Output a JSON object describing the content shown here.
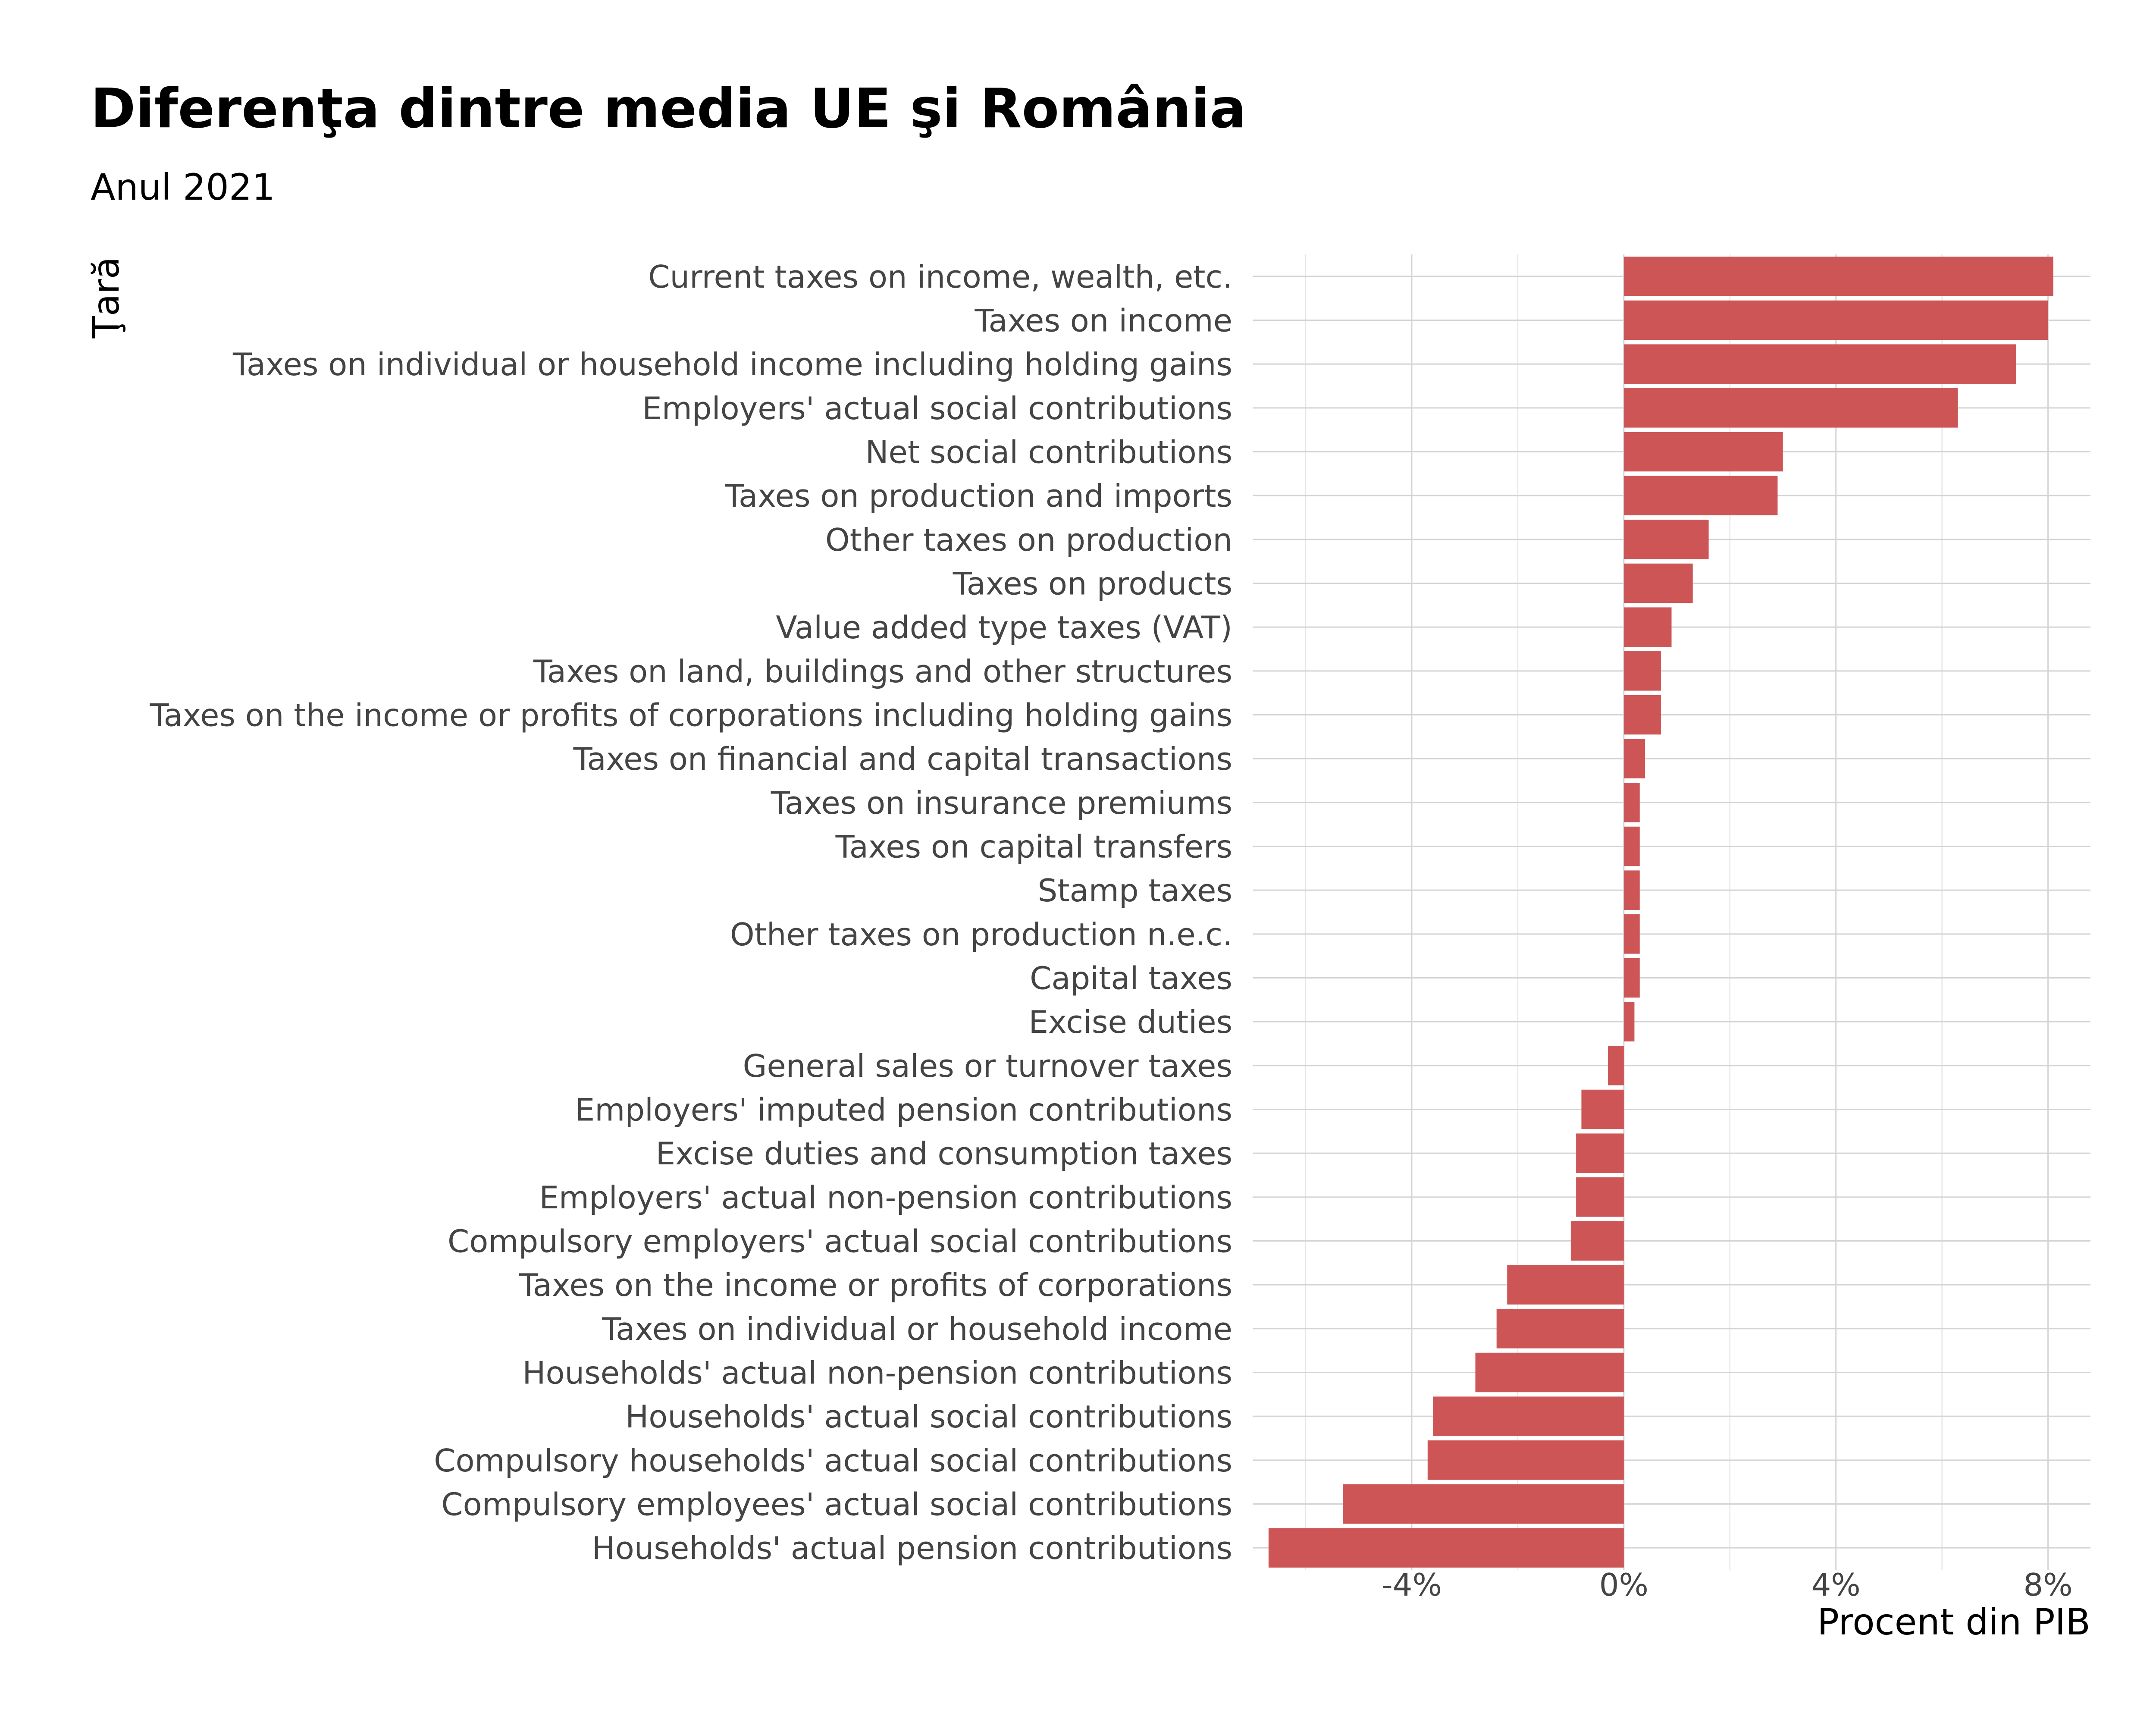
{
  "chart_data": {
    "type": "bar",
    "orientation": "horizontal",
    "title": "Diferenţa dintre media UE şi România",
    "subtitle": "Anul 2021",
    "xlabel": "Procent din PIB",
    "ylabel": "Ţară",
    "xlim": [
      -7.0,
      8.8
    ],
    "x_ticks": [
      -4,
      0,
      4,
      8
    ],
    "x_tick_labels": [
      "-4%",
      "0%",
      "4%",
      "8%"
    ],
    "grid": true,
    "bar_color": "#cd5555",
    "categories": [
      "Current taxes on income, wealth, etc.",
      "Taxes on income",
      "Taxes on individual or household income including holding gains",
      "Employers' actual social contributions",
      "Net social contributions",
      "Taxes on production and imports",
      "Other taxes on production",
      "Taxes on products",
      "Value added type taxes (VAT)",
      "Taxes on land, buildings and other structures",
      "Taxes on the income or profits of corporations including holding gains",
      "Taxes on financial and capital transactions",
      "Taxes on insurance premiums",
      "Taxes on capital transfers",
      "Stamp taxes",
      "Other taxes on production n.e.c.",
      "Capital taxes",
      "Excise duties",
      "General sales or turnover taxes",
      "Employers' imputed pension contributions",
      "Excise duties and consumption taxes",
      "Employers' actual non-pension contributions",
      "Compulsory employers' actual social contributions",
      "Taxes on the income or profits of corporations",
      "Taxes on individual or household income",
      "Households' actual non-pension contributions",
      "Households' actual social contributions",
      "Compulsory households' actual social contributions",
      "Compulsory employees' actual social contributions",
      "Households' actual pension contributions"
    ],
    "values": [
      8.1,
      8.0,
      7.4,
      6.3,
      3.0,
      2.9,
      1.6,
      1.3,
      0.9,
      0.7,
      0.7,
      0.4,
      0.3,
      0.3,
      0.3,
      0.3,
      0.3,
      0.2,
      -0.3,
      -0.8,
      -0.9,
      -0.9,
      -1.0,
      -2.2,
      -2.4,
      -2.8,
      -3.6,
      -3.7,
      -5.3,
      -6.7
    ]
  }
}
